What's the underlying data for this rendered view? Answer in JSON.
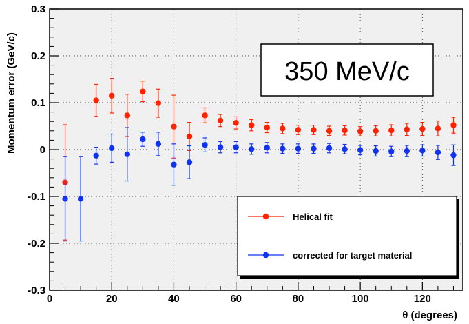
{
  "chart_data": {
    "type": "scatter",
    "title": "",
    "xlabel": "θ (degrees)",
    "ylabel": "Momentum error (GeV/c)",
    "xlim": [
      0,
      133
    ],
    "ylim": [
      -0.3,
      0.3
    ],
    "x_ticks": [
      "0",
      "20",
      "40",
      "60",
      "80",
      "100",
      "120"
    ],
    "y_ticks": [
      "-0.3",
      "-0.2",
      "-0.1",
      "0",
      "0.1",
      "0.2",
      "0.3"
    ],
    "grid": true,
    "legend_position": "bottom-right",
    "annotation": "350 MeV/c",
    "series": [
      {
        "name": "Helical fit",
        "color": "#ff2200",
        "points": [
          {
            "x": 5,
            "y": -0.07,
            "err": 0.123
          },
          {
            "x": 15,
            "y": 0.105,
            "err": 0.034
          },
          {
            "x": 20,
            "y": 0.115,
            "err": 0.037
          },
          {
            "x": 25,
            "y": 0.073,
            "err": 0.045
          },
          {
            "x": 30,
            "y": 0.124,
            "err": 0.022
          },
          {
            "x": 35,
            "y": 0.099,
            "err": 0.03
          },
          {
            "x": 40,
            "y": 0.049,
            "err": 0.067
          },
          {
            "x": 45,
            "y": 0.028,
            "err": 0.03
          },
          {
            "x": 50,
            "y": 0.073,
            "err": 0.016
          },
          {
            "x": 55,
            "y": 0.062,
            "err": 0.013
          },
          {
            "x": 60,
            "y": 0.057,
            "err": 0.013
          },
          {
            "x": 65,
            "y": 0.052,
            "err": 0.012
          },
          {
            "x": 70,
            "y": 0.047,
            "err": 0.011
          },
          {
            "x": 75,
            "y": 0.045,
            "err": 0.011
          },
          {
            "x": 80,
            "y": 0.042,
            "err": 0.01
          },
          {
            "x": 85,
            "y": 0.042,
            "err": 0.01
          },
          {
            "x": 90,
            "y": 0.04,
            "err": 0.01
          },
          {
            "x": 95,
            "y": 0.041,
            "err": 0.01
          },
          {
            "x": 100,
            "y": 0.039,
            "err": 0.01
          },
          {
            "x": 105,
            "y": 0.04,
            "err": 0.011
          },
          {
            "x": 110,
            "y": 0.041,
            "err": 0.012
          },
          {
            "x": 115,
            "y": 0.043,
            "err": 0.013
          },
          {
            "x": 120,
            "y": 0.044,
            "err": 0.014
          },
          {
            "x": 125,
            "y": 0.045,
            "err": 0.016
          },
          {
            "x": 130,
            "y": 0.052,
            "err": 0.017
          }
        ]
      },
      {
        "name": "corrected for target material",
        "color": "#1133ee",
        "points": [
          {
            "x": 5,
            "y": -0.105,
            "err": 0.09
          },
          {
            "x": 10,
            "y": -0.105,
            "err": 0.09
          },
          {
            "x": 15,
            "y": -0.013,
            "err": 0.018
          },
          {
            "x": 20,
            "y": 0.003,
            "err": 0.03
          },
          {
            "x": 25,
            "y": -0.01,
            "err": 0.057
          },
          {
            "x": 30,
            "y": 0.022,
            "err": 0.015
          },
          {
            "x": 35,
            "y": 0.012,
            "err": 0.025
          },
          {
            "x": 40,
            "y": -0.032,
            "err": 0.044
          },
          {
            "x": 45,
            "y": -0.027,
            "err": 0.035
          },
          {
            "x": 50,
            "y": 0.01,
            "err": 0.015
          },
          {
            "x": 55,
            "y": 0.005,
            "err": 0.012
          },
          {
            "x": 60,
            "y": 0.005,
            "err": 0.012
          },
          {
            "x": 65,
            "y": 0.001,
            "err": 0.011
          },
          {
            "x": 70,
            "y": 0.004,
            "err": 0.011
          },
          {
            "x": 75,
            "y": 0.002,
            "err": 0.01
          },
          {
            "x": 80,
            "y": 0.002,
            "err": 0.01
          },
          {
            "x": 85,
            "y": 0.002,
            "err": 0.01
          },
          {
            "x": 90,
            "y": 0.003,
            "err": 0.01
          },
          {
            "x": 95,
            "y": 0.001,
            "err": 0.01
          },
          {
            "x": 100,
            "y": -0.001,
            "err": 0.01
          },
          {
            "x": 105,
            "y": -0.003,
            "err": 0.011
          },
          {
            "x": 110,
            "y": -0.004,
            "err": 0.011
          },
          {
            "x": 115,
            "y": -0.003,
            "err": 0.012
          },
          {
            "x": 120,
            "y": -0.002,
            "err": 0.012
          },
          {
            "x": 125,
            "y": -0.006,
            "err": 0.015
          },
          {
            "x": 130,
            "y": -0.012,
            "err": 0.022
          }
        ]
      }
    ]
  }
}
